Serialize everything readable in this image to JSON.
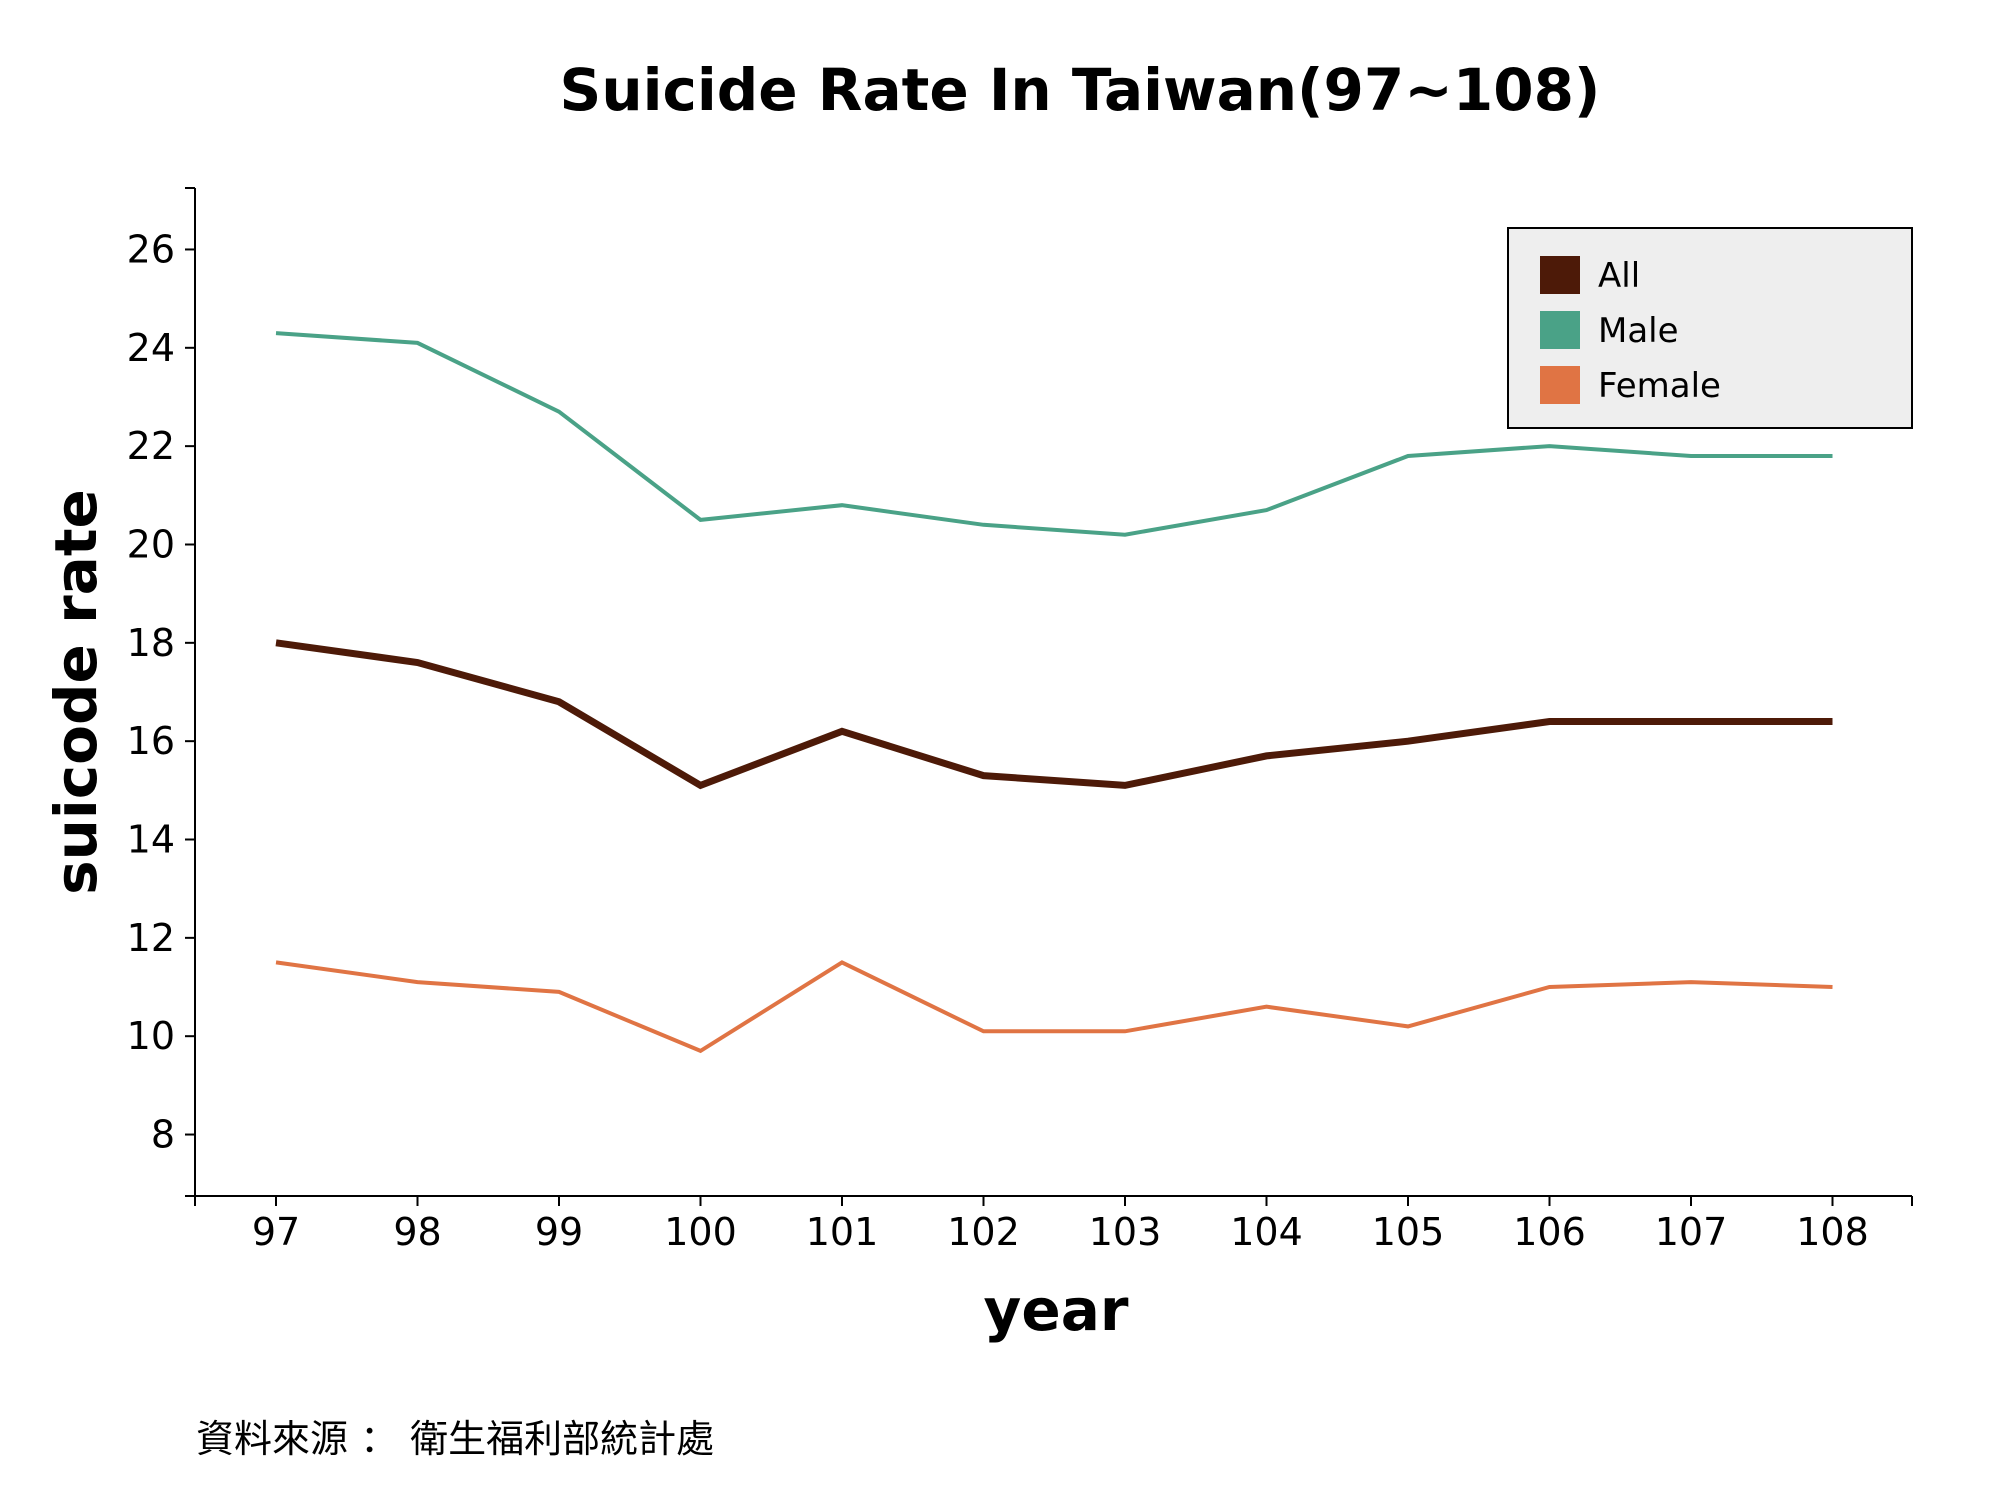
{
  "chart_data": {
    "type": "line",
    "title": "Suicide Rate In Taiwan(97~108)",
    "xlabel": "year",
    "ylabel": "suicode rate",
    "x": [
      97,
      98,
      99,
      100,
      101,
      102,
      103,
      104,
      105,
      106,
      107,
      108
    ],
    "ylim": [
      6.75,
      27.25
    ],
    "yticks": [
      8,
      10,
      12,
      14,
      16,
      18,
      20,
      22,
      24,
      26
    ],
    "series": [
      {
        "name": "All",
        "color": "#4d1a08",
        "values": [
          18.0,
          17.6,
          16.8,
          15.1,
          16.2,
          15.3,
          15.1,
          15.7,
          16.0,
          16.4,
          16.4,
          16.4
        ]
      },
      {
        "name": "Male",
        "color": "#4aa287",
        "values": [
          24.3,
          24.1,
          22.7,
          20.5,
          20.8,
          20.4,
          20.2,
          20.7,
          21.8,
          22.0,
          21.8,
          21.8
        ]
      },
      {
        "name": "Female",
        "color": "#e07444",
        "values": [
          11.5,
          11.1,
          10.9,
          9.7,
          11.5,
          10.1,
          10.1,
          10.6,
          10.2,
          11.0,
          11.1,
          11.0
        ]
      }
    ],
    "legend": "top-right",
    "grid": false
  },
  "footer": {
    "source": "資料來源 ： 衛生福利部統計處"
  },
  "colors": {
    "legend_background": "#eeeeee"
  }
}
